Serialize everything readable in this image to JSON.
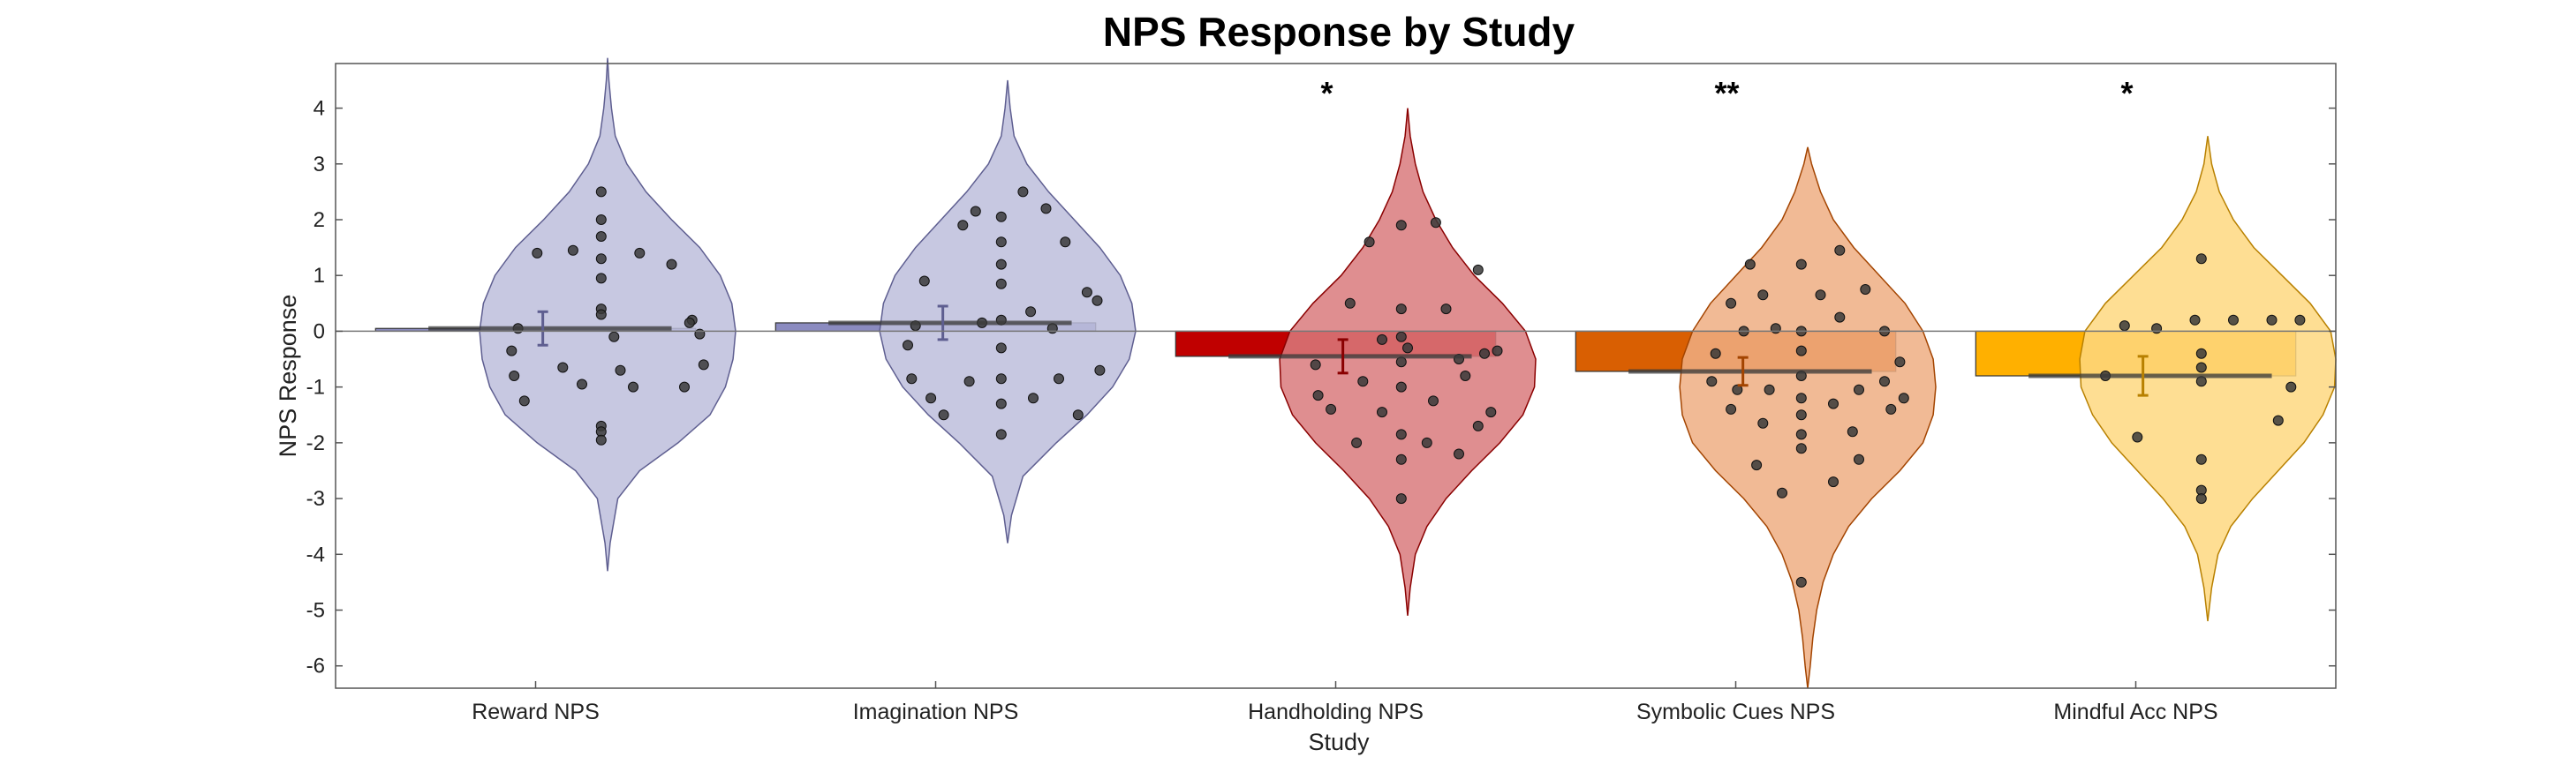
{
  "chart_data": {
    "type": "violin-bar",
    "title": "NPS Response by Study",
    "xlabel": "Study",
    "ylabel": "NPS Response",
    "ylim": [
      -6.4,
      4.8
    ],
    "yticks": [
      -6,
      -5,
      -4,
      -3,
      -2,
      -1,
      0,
      1,
      2,
      3,
      4
    ],
    "grid": false,
    "categories": [
      "Reward NPS",
      "Imagination NPS",
      "Handholding NPS",
      "Symbolic Cues NPS",
      "Mindful Acc NPS"
    ],
    "series": [
      {
        "category": "Reward NPS",
        "mean": 0.05,
        "se": 0.3,
        "significance": "",
        "bar_color": "#8B8BC0",
        "violin_color": "#BDBEDC",
        "violin_stroke": "#5E5E90",
        "violin_min": -4.3,
        "violin_max": 4.9,
        "density": [
          [
            -4.3,
            0.0
          ],
          [
            -3.8,
            0.02
          ],
          [
            -3.0,
            0.08
          ],
          [
            -2.5,
            0.25
          ],
          [
            -2.0,
            0.55
          ],
          [
            -1.5,
            0.8
          ],
          [
            -1.0,
            0.92
          ],
          [
            -0.5,
            0.98
          ],
          [
            0.0,
            1.0
          ],
          [
            0.5,
            0.97
          ],
          [
            1.0,
            0.88
          ],
          [
            1.5,
            0.72
          ],
          [
            2.0,
            0.5
          ],
          [
            2.5,
            0.3
          ],
          [
            3.0,
            0.15
          ],
          [
            3.5,
            0.06
          ],
          [
            4.0,
            0.03
          ],
          [
            4.5,
            0.01
          ],
          [
            4.9,
            0.0
          ]
        ],
        "points": [
          [
            -0.05,
            2.5
          ],
          [
            -0.05,
            2.0
          ],
          [
            -0.05,
            1.7
          ],
          [
            -0.05,
            1.3
          ],
          [
            -0.05,
            0.95
          ],
          [
            -0.05,
            0.4
          ],
          [
            -0.05,
            0.3
          ],
          [
            -0.05,
            -1.7
          ],
          [
            -0.05,
            -1.8
          ],
          [
            -0.05,
            -1.95
          ],
          [
            -0.55,
            1.4
          ],
          [
            -0.27,
            1.45
          ],
          [
            0.25,
            1.4
          ],
          [
            0.5,
            1.2
          ],
          [
            0.66,
            0.2
          ],
          [
            0.64,
            0.15
          ],
          [
            0.72,
            -0.05
          ],
          [
            0.75,
            -0.6
          ],
          [
            0.6,
            -1.0
          ],
          [
            -0.35,
            -0.65
          ],
          [
            -0.2,
            -0.95
          ],
          [
            0.1,
            -0.7
          ],
          [
            0.2,
            -1.0
          ],
          [
            -0.75,
            -0.35
          ],
          [
            -0.73,
            -0.8
          ],
          [
            -0.65,
            -1.25
          ],
          [
            -0.7,
            0.05
          ],
          [
            0.05,
            -0.1
          ]
        ]
      },
      {
        "category": "Imagination NPS",
        "mean": 0.15,
        "se": 0.3,
        "significance": "",
        "bar_color": "#8B8BC0",
        "violin_color": "#BDBEDC",
        "violin_stroke": "#5E5E90",
        "violin_min": -3.8,
        "violin_max": 4.5,
        "density": [
          [
            -3.8,
            0.0
          ],
          [
            -3.3,
            0.03
          ],
          [
            -2.6,
            0.12
          ],
          [
            -2.0,
            0.38
          ],
          [
            -1.5,
            0.62
          ],
          [
            -1.0,
            0.82
          ],
          [
            -0.5,
            0.95
          ],
          [
            0.0,
            1.0
          ],
          [
            0.5,
            0.97
          ],
          [
            1.0,
            0.88
          ],
          [
            1.5,
            0.72
          ],
          [
            2.0,
            0.52
          ],
          [
            2.5,
            0.32
          ],
          [
            3.0,
            0.15
          ],
          [
            3.5,
            0.05
          ],
          [
            4.0,
            0.02
          ],
          [
            4.5,
            0.0
          ]
        ],
        "points": [
          [
            -0.05,
            2.05
          ],
          [
            -0.05,
            1.6
          ],
          [
            -0.05,
            1.2
          ],
          [
            -0.05,
            0.85
          ],
          [
            -0.05,
            0.2
          ],
          [
            -0.05,
            -0.3
          ],
          [
            -0.05,
            -0.85
          ],
          [
            -0.05,
            -1.3
          ],
          [
            -0.05,
            -1.85
          ],
          [
            0.12,
            2.5
          ],
          [
            0.3,
            2.2
          ],
          [
            -0.25,
            2.15
          ],
          [
            -0.35,
            1.9
          ],
          [
            -0.65,
            0.9
          ],
          [
            0.45,
            1.6
          ],
          [
            0.62,
            0.7
          ],
          [
            0.7,
            0.55
          ],
          [
            0.18,
            0.35
          ],
          [
            0.35,
            0.05
          ],
          [
            -0.2,
            0.15
          ],
          [
            -0.72,
            0.1
          ],
          [
            -0.78,
            -0.25
          ],
          [
            -0.75,
            -0.85
          ],
          [
            -0.6,
            -1.2
          ],
          [
            -0.5,
            -1.5
          ],
          [
            -0.3,
            -0.9
          ],
          [
            0.2,
            -1.2
          ],
          [
            0.4,
            -0.85
          ],
          [
            0.55,
            -1.5
          ],
          [
            0.72,
            -0.7
          ]
        ]
      },
      {
        "category": "Handholding NPS",
        "mean": -0.45,
        "se": 0.3,
        "significance": "*",
        "bar_color": "#C00000",
        "violin_color": "#D97A7D",
        "violin_stroke": "#8A0000",
        "violin_min": -5.1,
        "violin_max": 4.0,
        "density": [
          [
            -5.1,
            0.0
          ],
          [
            -4.6,
            0.02
          ],
          [
            -4.0,
            0.06
          ],
          [
            -3.5,
            0.15
          ],
          [
            -3.0,
            0.3
          ],
          [
            -2.5,
            0.5
          ],
          [
            -2.0,
            0.72
          ],
          [
            -1.5,
            0.9
          ],
          [
            -1.0,
            0.99
          ],
          [
            -0.5,
            1.0
          ],
          [
            0.0,
            0.92
          ],
          [
            0.5,
            0.74
          ],
          [
            1.0,
            0.52
          ],
          [
            1.5,
            0.35
          ],
          [
            2.0,
            0.22
          ],
          [
            2.5,
            0.12
          ],
          [
            3.0,
            0.06
          ],
          [
            3.5,
            0.02
          ],
          [
            4.0,
            0.0
          ]
        ],
        "points": [
          [
            -0.05,
            1.9
          ],
          [
            -0.05,
            0.4
          ],
          [
            -0.05,
            -0.1
          ],
          [
            -0.05,
            -0.55
          ],
          [
            -0.05,
            -1.0
          ],
          [
            -0.05,
            -1.85
          ],
          [
            -0.05,
            -2.3
          ],
          [
            -0.05,
            -3.0
          ],
          [
            0.22,
            1.95
          ],
          [
            -0.3,
            1.6
          ],
          [
            0.55,
            1.1
          ],
          [
            -0.45,
            0.5
          ],
          [
            0.3,
            0.4
          ],
          [
            -0.2,
            -0.15
          ],
          [
            0.0,
            -0.3
          ],
          [
            0.6,
            -0.4
          ],
          [
            0.7,
            -0.35
          ],
          [
            -0.72,
            -0.6
          ],
          [
            -0.7,
            -1.15
          ],
          [
            -0.6,
            -1.4
          ],
          [
            0.4,
            -0.5
          ],
          [
            0.45,
            -0.8
          ],
          [
            -0.35,
            -0.9
          ],
          [
            -0.2,
            -1.45
          ],
          [
            0.2,
            -1.25
          ],
          [
            -0.4,
            -2.0
          ],
          [
            0.15,
            -2.0
          ],
          [
            0.65,
            -1.45
          ],
          [
            0.55,
            -1.7
          ],
          [
            0.4,
            -2.2
          ]
        ]
      },
      {
        "category": "Symbolic Cues NPS",
        "mean": -0.72,
        "se": 0.25,
        "significance": "**",
        "bar_color": "#D95F02",
        "violin_color": "#EEAE82",
        "violin_stroke": "#A34400",
        "violin_min": -6.4,
        "violin_max": 3.3,
        "density": [
          [
            -6.4,
            0.0
          ],
          [
            -6.0,
            0.02
          ],
          [
            -5.5,
            0.04
          ],
          [
            -5.0,
            0.07
          ],
          [
            -4.5,
            0.12
          ],
          [
            -4.0,
            0.2
          ],
          [
            -3.5,
            0.32
          ],
          [
            -3.0,
            0.5
          ],
          [
            -2.5,
            0.72
          ],
          [
            -2.0,
            0.9
          ],
          [
            -1.5,
            0.98
          ],
          [
            -1.0,
            1.0
          ],
          [
            -0.5,
            0.98
          ],
          [
            0.0,
            0.9
          ],
          [
            0.5,
            0.76
          ],
          [
            1.0,
            0.56
          ],
          [
            1.5,
            0.36
          ],
          [
            2.0,
            0.2
          ],
          [
            2.5,
            0.1
          ],
          [
            3.0,
            0.03
          ],
          [
            3.3,
            0.0
          ]
        ],
        "points": [
          [
            -0.05,
            1.2
          ],
          [
            -0.05,
            0.0
          ],
          [
            -0.05,
            -0.35
          ],
          [
            -0.05,
            -0.8
          ],
          [
            -0.05,
            -1.2
          ],
          [
            -0.05,
            -1.5
          ],
          [
            -0.05,
            -1.85
          ],
          [
            -0.05,
            -2.1
          ],
          [
            -0.05,
            -4.5
          ],
          [
            0.25,
            1.45
          ],
          [
            -0.45,
            1.2
          ],
          [
            -0.35,
            0.65
          ],
          [
            -0.6,
            0.5
          ],
          [
            0.1,
            0.65
          ],
          [
            0.45,
            0.75
          ],
          [
            0.25,
            0.25
          ],
          [
            -0.5,
            0.0
          ],
          [
            -0.25,
            0.05
          ],
          [
            0.6,
            0.0
          ],
          [
            -0.72,
            -0.4
          ],
          [
            0.72,
            -0.55
          ],
          [
            0.6,
            -0.9
          ],
          [
            -0.75,
            -0.9
          ],
          [
            -0.55,
            -1.05
          ],
          [
            -0.3,
            -1.05
          ],
          [
            0.2,
            -1.3
          ],
          [
            0.4,
            -1.05
          ],
          [
            0.75,
            -1.2
          ],
          [
            0.65,
            -1.4
          ],
          [
            -0.6,
            -1.4
          ],
          [
            -0.35,
            -1.65
          ],
          [
            0.35,
            -1.8
          ],
          [
            0.4,
            -2.3
          ],
          [
            -0.4,
            -2.4
          ],
          [
            -0.2,
            -2.9
          ],
          [
            0.2,
            -2.7
          ]
        ]
      },
      {
        "category": "Mindful Acc NPS",
        "mean": -0.8,
        "se": 0.35,
        "significance": "*",
        "bar_color": "#FFB000",
        "violin_color": "#FED880",
        "violin_stroke": "#B88000",
        "violin_min": -5.2,
        "violin_max": 3.5,
        "density": [
          [
            -5.2,
            0.0
          ],
          [
            -4.6,
            0.03
          ],
          [
            -4.0,
            0.08
          ],
          [
            -3.5,
            0.18
          ],
          [
            -3.0,
            0.35
          ],
          [
            -2.5,
            0.55
          ],
          [
            -2.0,
            0.75
          ],
          [
            -1.5,
            0.9
          ],
          [
            -1.0,
            0.99
          ],
          [
            -0.5,
            1.0
          ],
          [
            0.0,
            0.96
          ],
          [
            0.5,
            0.8
          ],
          [
            1.0,
            0.58
          ],
          [
            1.5,
            0.36
          ],
          [
            2.0,
            0.2
          ],
          [
            2.5,
            0.09
          ],
          [
            3.0,
            0.03
          ],
          [
            3.5,
            0.0
          ]
        ],
        "points": [
          [
            -0.05,
            1.3
          ],
          [
            -0.05,
            -0.4
          ],
          [
            -0.05,
            -0.65
          ],
          [
            -0.05,
            -0.9
          ],
          [
            -0.05,
            -2.3
          ],
          [
            -0.05,
            -2.85
          ],
          [
            -0.05,
            -3.0
          ],
          [
            -0.65,
            0.1
          ],
          [
            -0.4,
            0.05
          ],
          [
            -0.1,
            0.2
          ],
          [
            0.2,
            0.2
          ],
          [
            0.5,
            0.2
          ],
          [
            0.72,
            0.2
          ],
          [
            -0.8,
            -0.8
          ],
          [
            0.65,
            -1.0
          ],
          [
            -0.55,
            -1.9
          ],
          [
            0.55,
            -1.6
          ]
        ]
      }
    ]
  }
}
